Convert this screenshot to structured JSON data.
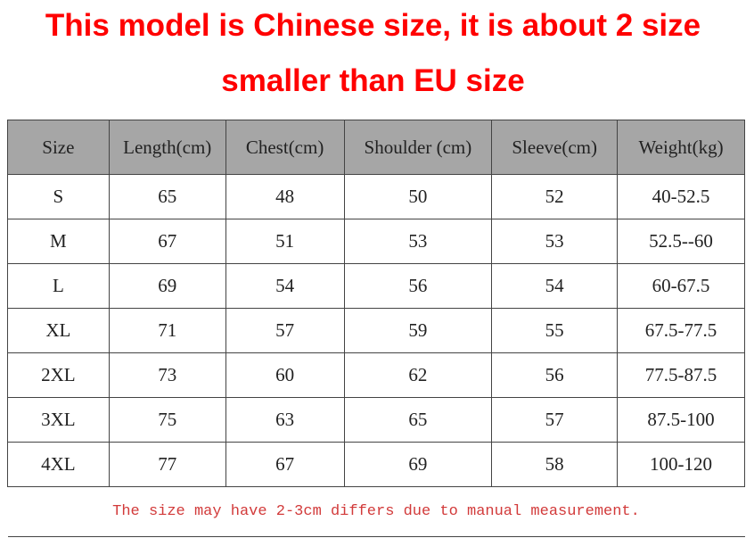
{
  "title": {
    "lines": [
      "This model is Chinese size, it is about 2 size",
      "smaller than EU size"
    ]
  },
  "table": {
    "header": [
      "Size",
      "Length(cm)",
      "Chest(cm)",
      "Shoulder (cm)",
      "Sleeve(cm)",
      "Weight(kg)"
    ],
    "rows": [
      [
        "S",
        "65",
        "48",
        "50",
        "52",
        "40-52.5"
      ],
      [
        "M",
        "67",
        "51",
        "53",
        "53",
        "52.5--60"
      ],
      [
        "L",
        "69",
        "54",
        "56",
        "54",
        "60-67.5"
      ],
      [
        "XL",
        "71",
        "57",
        "59",
        "55",
        "67.5-77.5"
      ],
      [
        "2XL",
        "73",
        "60",
        "62",
        "56",
        "77.5-87.5"
      ],
      [
        "3XL",
        "75",
        "63",
        "65",
        "57",
        "87.5-100"
      ],
      [
        "4XL",
        "77",
        "67",
        "69",
        "58",
        "100-120"
      ]
    ],
    "note": "The size may have 2-3cm differs due to manual measurement."
  }
}
